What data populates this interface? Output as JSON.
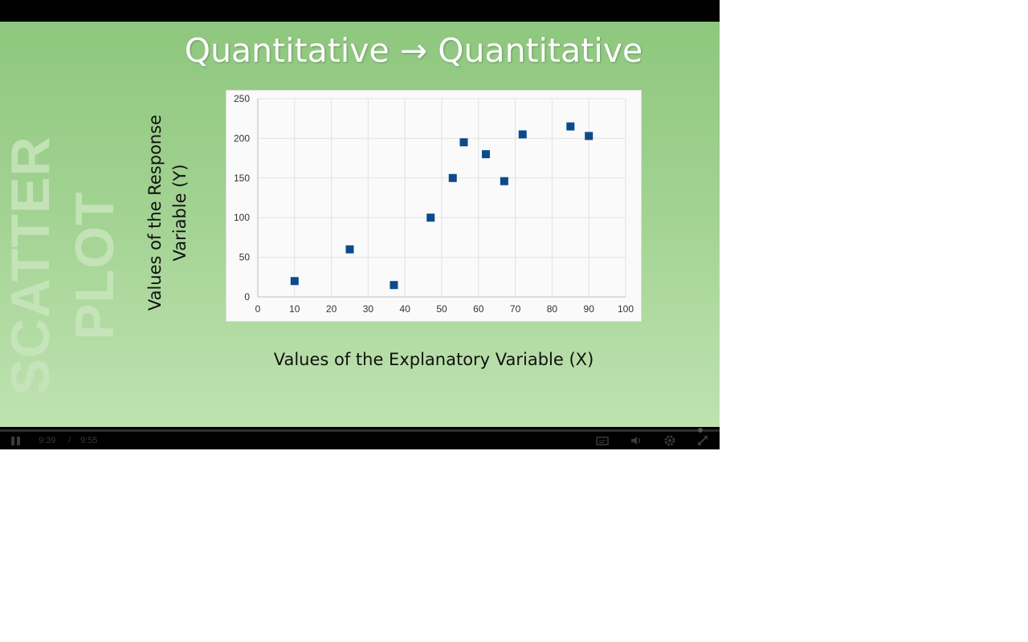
{
  "slide": {
    "side_word": "SCATTER PLOT",
    "title": "Quantitative → Quantitative",
    "y_axis_title_line1": "Values of the Response",
    "y_axis_title_line2": "Variable (Y)",
    "x_axis_title": "Values of the Explanatory Variable (X)"
  },
  "chart_data": {
    "type": "scatter",
    "x": [
      10,
      25,
      37,
      47,
      53,
      56,
      62,
      67,
      72,
      85,
      90
    ],
    "y": [
      20,
      60,
      15,
      100,
      150,
      195,
      180,
      146,
      205,
      215,
      203
    ],
    "xlim": [
      0,
      100
    ],
    "ylim": [
      0,
      250
    ],
    "xticks": [
      0,
      10,
      20,
      30,
      40,
      50,
      60,
      70,
      80,
      90,
      100
    ],
    "yticks": [
      0,
      50,
      100,
      150,
      200,
      250
    ],
    "xlabel": "Values of the Explanatory Variable (X)",
    "ylabel": "Values of the Response Variable (Y)",
    "grid": true,
    "marker": "square",
    "marker_color": "#0d4a8a"
  },
  "player": {
    "time_current": "9:39",
    "time_separator": "/",
    "time_total": "9:55",
    "progress": 0.973,
    "icons": {
      "play_pause": "pause-icon",
      "captions": "captions-icon",
      "volume": "volume-icon",
      "settings": "gear-icon",
      "fullscreen": "fullscreen-icon"
    }
  }
}
